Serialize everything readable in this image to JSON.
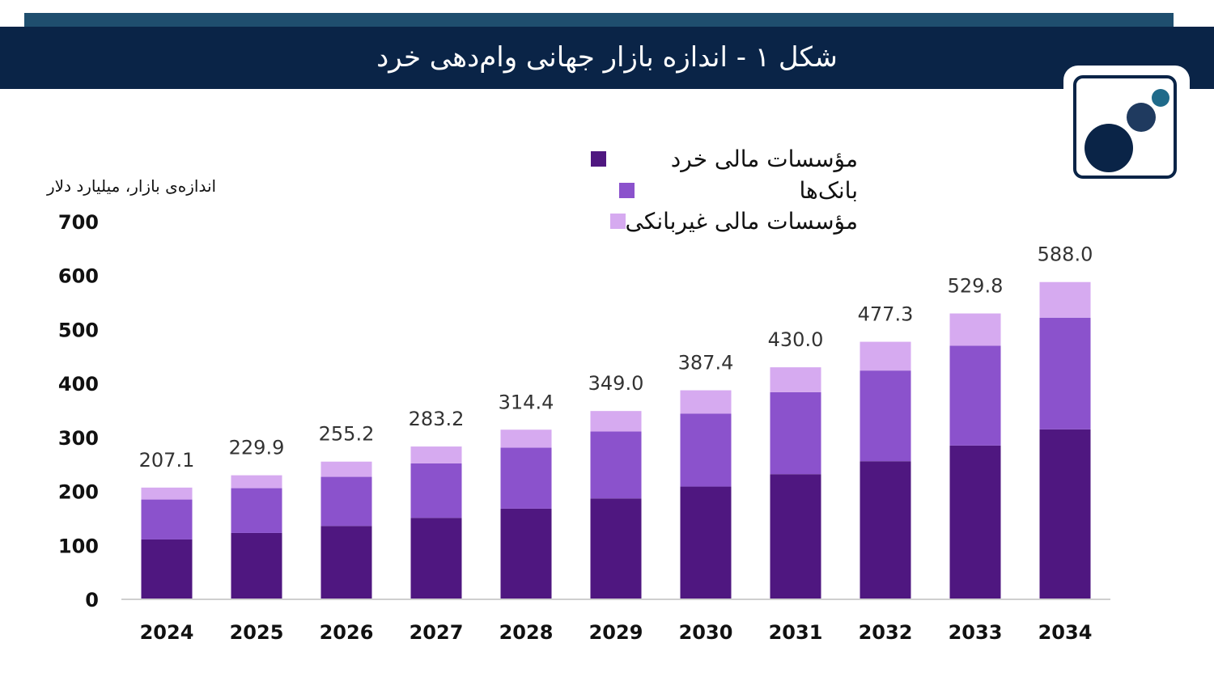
{
  "header": {
    "title": "شکل ۱ - اندازه بازار جهانی وام‌دهی خرد"
  },
  "logo": {
    "colors": {
      "frame": "#0a2447",
      "big": "#0a2447",
      "mid": "#1f3a5f",
      "small": "#1f6a8a"
    }
  },
  "chart_data": {
    "type": "bar",
    "stacked": true,
    "ylabel": "اندازه‌ی بازار، میلیارد دلار",
    "ylim": [
      0,
      700
    ],
    "yticks": [
      0,
      100,
      200,
      300,
      400,
      500,
      600,
      700
    ],
    "categories": [
      "2024",
      "2025",
      "2026",
      "2027",
      "2028",
      "2029",
      "2030",
      "2031",
      "2032",
      "2033",
      "2034"
    ],
    "series": [
      {
        "name": "مؤسسات مالی خرد",
        "color": "#4f1780",
        "values": [
          111,
          123,
          136,
          151,
          168,
          187,
          209,
          232,
          256,
          285,
          315
        ]
      },
      {
        "name": "بانک‌ها",
        "color": "#8b52cc",
        "values": [
          74,
          83,
          91,
          101,
          113,
          124,
          135,
          152,
          168,
          185,
          207
        ]
      },
      {
        "name": "مؤسسات مالی غیربانکی",
        "color": "#d6aaf0",
        "values": [
          22.1,
          23.9,
          28.2,
          31.2,
          33.4,
          38.0,
          43.4,
          46.0,
          53.3,
          59.8,
          66.0
        ]
      }
    ],
    "totals": [
      "207.1",
      "229.9",
      "255.2",
      "283.2",
      "314.4",
      "349.0",
      "387.4",
      "430.0",
      "477.3",
      "529.8",
      "588.0"
    ],
    "legend_position": "top-center"
  }
}
